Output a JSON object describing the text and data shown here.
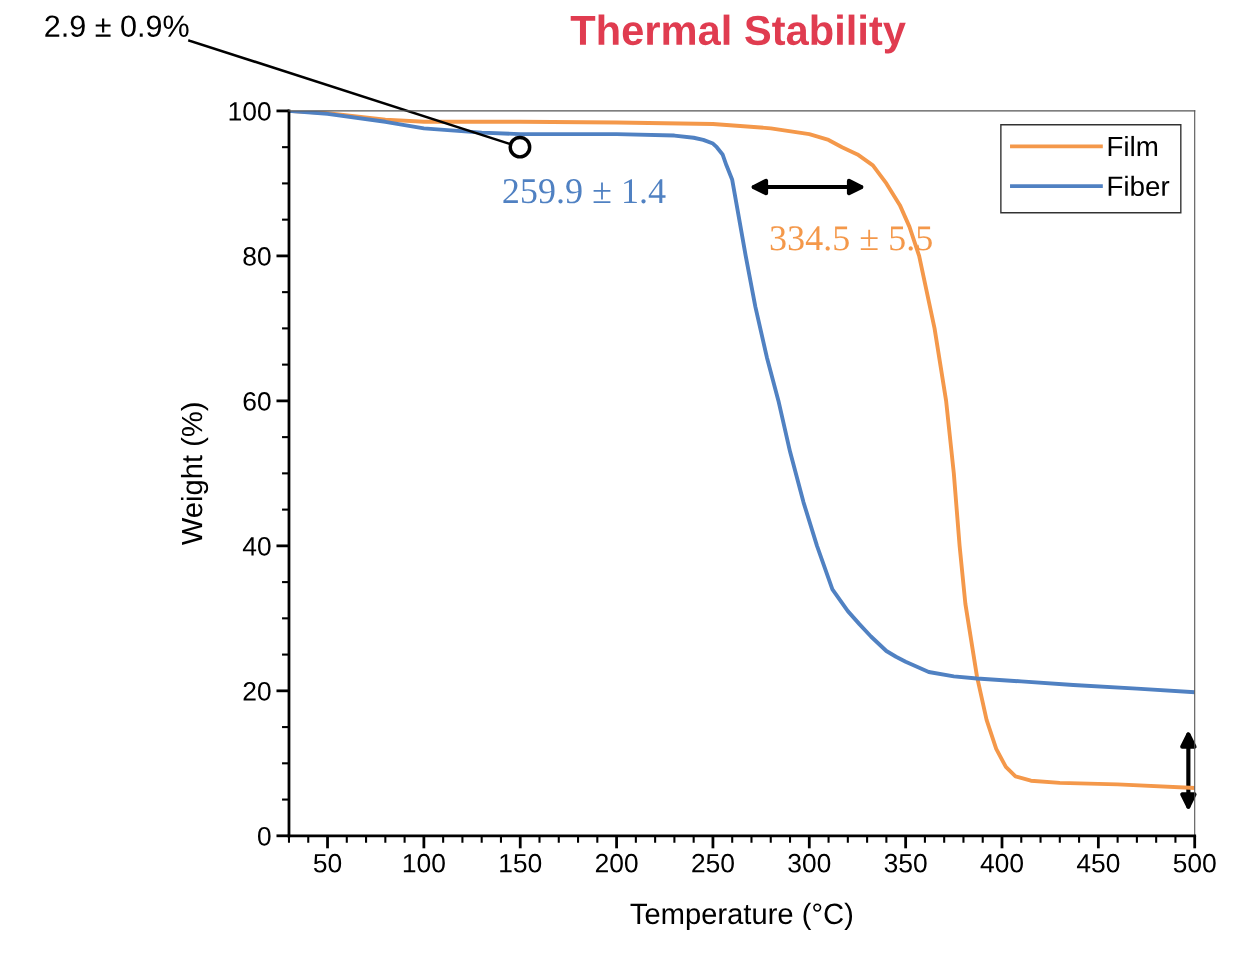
{
  "chart_data": {
    "type": "line",
    "title": "Thermal Stability",
    "xlabel": "Temperature (°C)",
    "ylabel": "Weight (%)",
    "xlim": [
      30,
      500
    ],
    "ylim": [
      0,
      100
    ],
    "xticks": [
      50,
      100,
      150,
      200,
      250,
      300,
      350,
      400,
      450,
      500
    ],
    "yticks": [
      0,
      20,
      40,
      60,
      80,
      100
    ],
    "grid": false,
    "legend": "top right",
    "marker": "none",
    "line_style": "solid",
    "annotations": [
      "2.9 ± 0.9%",
      "259.9 ± 1.4",
      "334.5 ± 5.5"
    ],
    "series": [
      {
        "name": "Film",
        "color": "#f4984a",
        "x": [
          30,
          50,
          80,
          100,
          150,
          200,
          250,
          280,
          300,
          310,
          317,
          325,
          333,
          340,
          347,
          352,
          357,
          361,
          365,
          368,
          371,
          375,
          378,
          381,
          384,
          387,
          392,
          397,
          402,
          407,
          415,
          430,
          460,
          500
        ],
        "values": [
          100,
          99.7,
          98.8,
          98.5,
          98.5,
          98.4,
          98.2,
          97.6,
          96.8,
          96,
          95,
          94,
          92.5,
          90,
          87,
          84,
          80,
          75,
          70,
          65,
          60,
          50,
          40,
          32,
          27,
          22,
          16,
          12,
          9.5,
          8.2,
          7.6,
          7.3,
          7.1,
          6.6
        ]
      },
      {
        "name": "Fiber",
        "color": "#5081c2",
        "x": [
          30,
          50,
          80,
          100,
          130,
          150,
          200,
          230,
          240,
          245,
          250,
          252,
          255,
          257,
          260,
          263,
          267,
          272,
          278,
          284,
          290,
          297,
          304,
          312,
          320,
          326,
          332,
          340,
          345,
          350,
          362,
          375,
          387,
          410,
          437,
          470,
          500
        ],
        "values": [
          100,
          99.6,
          98.5,
          97.6,
          97,
          96.8,
          96.8,
          96.6,
          96.3,
          96,
          95.5,
          95,
          94,
          92.5,
          90.5,
          86,
          80,
          73,
          66,
          60,
          53,
          46,
          40,
          34,
          31,
          29.2,
          27.5,
          25.5,
          24.7,
          24,
          22.6,
          22,
          21.7,
          21.3,
          20.8,
          20.3,
          19.8
        ]
      }
    ]
  }
}
